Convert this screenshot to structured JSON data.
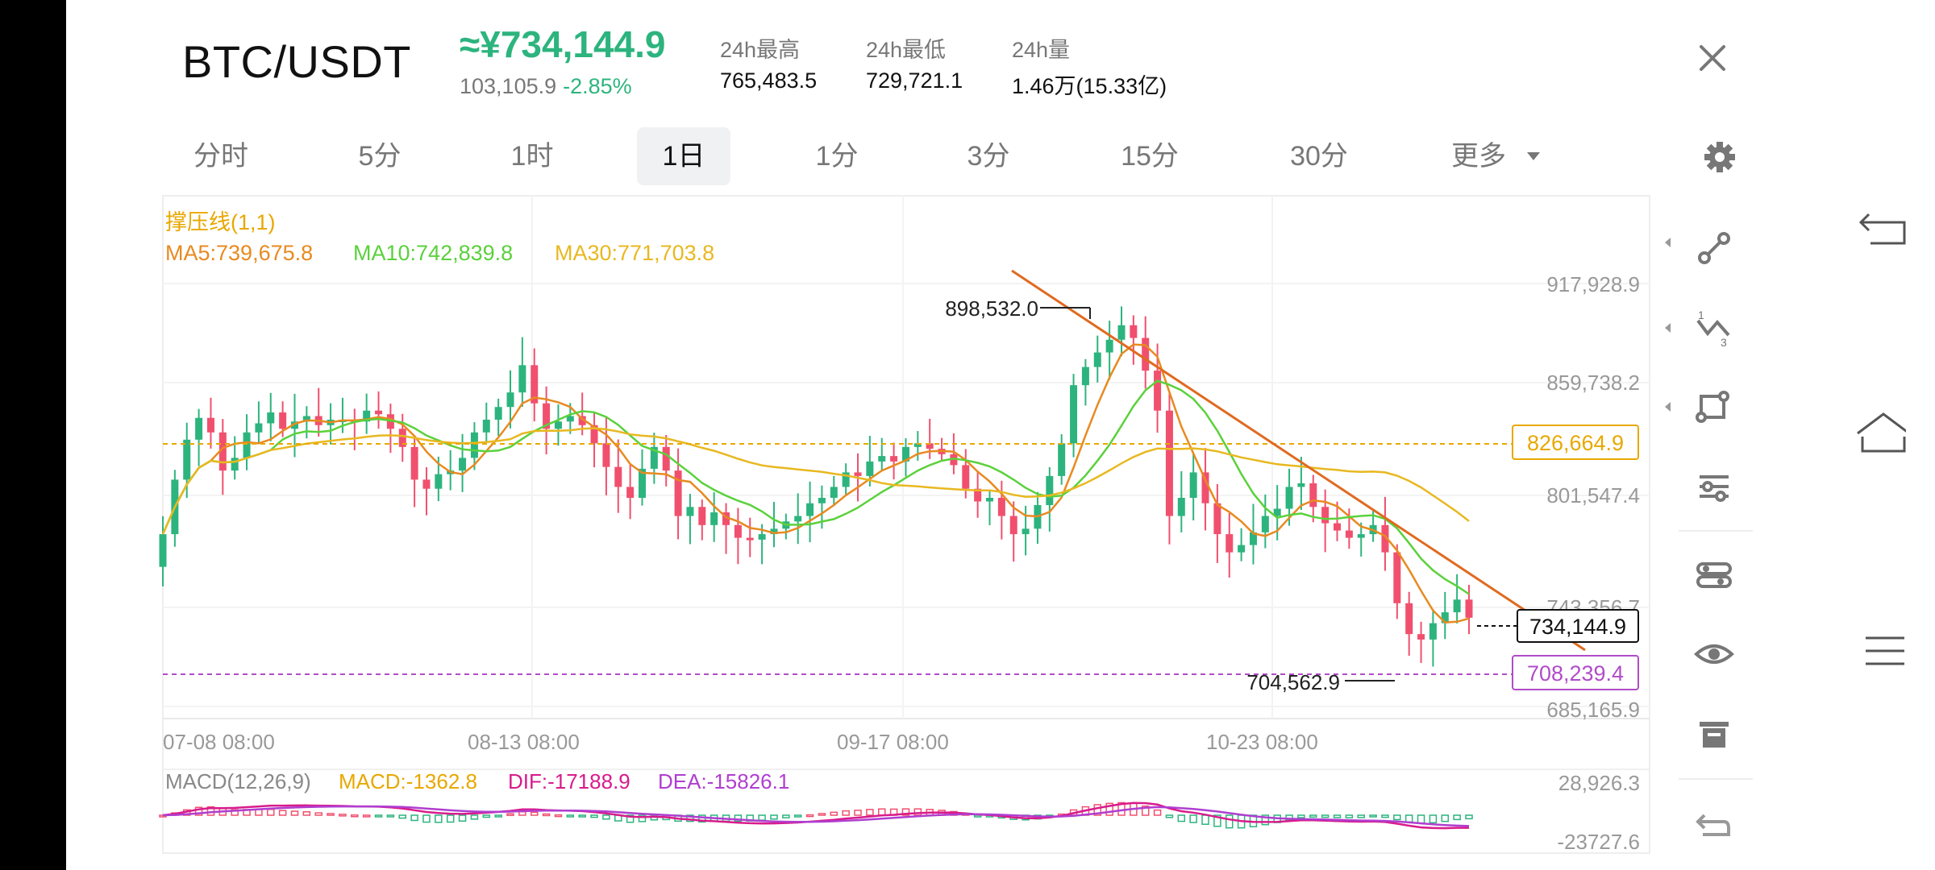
{
  "header": {
    "pair": "BTC/USDT",
    "price": "≈¥734,144.9",
    "usd_price": "103,105.9",
    "change": "-2.85%",
    "stats": [
      {
        "label": "24h最高",
        "value": "765,483.5"
      },
      {
        "label": "24h最低",
        "value": "729,721.1"
      },
      {
        "label": "24h量",
        "value": "1.46万(15.33亿)"
      }
    ]
  },
  "tabs": [
    {
      "label": "分时",
      "active": false
    },
    {
      "label": "5分",
      "active": false
    },
    {
      "label": "1时",
      "active": false
    },
    {
      "label": "1日",
      "active": true
    },
    {
      "label": "1分",
      "active": false
    },
    {
      "label": "3分",
      "active": false
    },
    {
      "label": "15分",
      "active": false
    },
    {
      "label": "30分",
      "active": false
    },
    {
      "label": "更多",
      "active": false
    }
  ],
  "icons": {
    "close": "close-icon",
    "settings": "gear-icon",
    "more_dropdown": "caret-down-icon",
    "tools": [
      "line-segment-icon",
      "trend-line-icon",
      "rectangle-icon",
      "adjust-icon",
      "indicator-icon",
      "eye-icon",
      "trash-icon",
      "undo-icon"
    ],
    "nav": [
      "back-icon",
      "home-icon",
      "menu-icon"
    ]
  },
  "indicators": {
    "sr_label": "撑压线(1,1)",
    "ma5": "MA5:739,675.8",
    "ma10": "MA10:742,839.8",
    "ma30": "MA30:771,703.8",
    "macd_title": "MACD(12,26,9)",
    "macd": "MACD:-1362.8",
    "dif": "DIF:-17188.9",
    "dea": "DEA:-15826.1"
  },
  "colors": {
    "up": "#2db47e",
    "down": "#f0506e",
    "ma5": "#e88a20",
    "ma10": "#5bd13c",
    "ma30": "#e8b820",
    "resistance": "#e8a800",
    "support": "#b04cc8",
    "dif": "#d81b8c",
    "dea": "#b03ed0",
    "trendline": "#e06a20"
  },
  "chart_data": {
    "type": "candlestick",
    "y_ticks": [
      "917,928.9",
      "859,738.2",
      "801,547.4",
      "743,356.7",
      "685,165.9"
    ],
    "x_ticks": [
      "07-08 08:00",
      "08-13 08:00",
      "09-17 08:00",
      "10-23 08:00"
    ],
    "annotations": {
      "high": "898,532.0",
      "low": "704,562.9",
      "current": "734,144.9",
      "resistance": "826,664.9",
      "support": "708,239.4"
    },
    "macd_ticks": [
      "28,926.3",
      "-23727.6"
    ],
    "ylim": [
      685165.9,
      917928.9
    ],
    "closes": [
      780000,
      810000,
      832000,
      844000,
      836000,
      815000,
      822000,
      836000,
      841000,
      847000,
      838000,
      842000,
      845000,
      840000,
      843000,
      843000,
      842000,
      848000,
      846000,
      838000,
      828000,
      810000,
      805000,
      813000,
      815000,
      822000,
      836000,
      843000,
      850000,
      858000,
      873000,
      852000,
      838000,
      842000,
      845000,
      840000,
      830000,
      817000,
      806000,
      800000,
      816000,
      828000,
      815000,
      790000,
      795000,
      785000,
      792000,
      785000,
      778000,
      777000,
      780000,
      783000,
      787000,
      790000,
      797000,
      800000,
      806000,
      814000,
      812000,
      820000,
      823000,
      820000,
      828000,
      830000,
      827000,
      824000,
      818000,
      805000,
      798000,
      800000,
      790000,
      780000,
      783000,
      796000,
      812000,
      830000,
      862000,
      872000,
      880000,
      887000,
      895000,
      888000,
      870000,
      848000,
      790000,
      800000,
      814000,
      797000,
      780000,
      770000,
      774000,
      781000,
      790000,
      794000,
      806000,
      808000,
      795000,
      786000,
      782000,
      778000,
      780000,
      785000,
      770000,
      742000,
      725000,
      722000,
      731000,
      737000,
      744000,
      734000
    ]
  }
}
